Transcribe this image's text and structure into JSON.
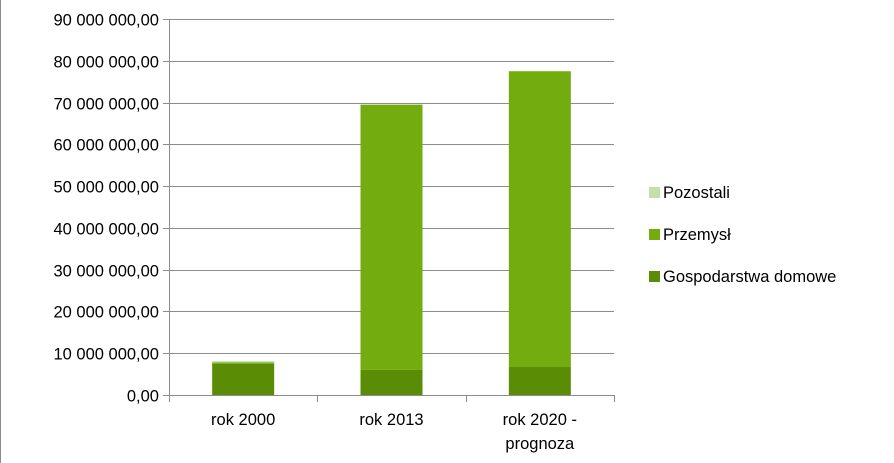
{
  "chart_data": {
    "type": "bar",
    "stacked": true,
    "categories": [
      "rok 2000",
      "rok 2013",
      "rok 2020 -\nprognoza"
    ],
    "series": [
      {
        "name": "Gospodarstwa domowe",
        "color": "#5b8c06",
        "values": [
          7500000,
          6000000,
          6700000
        ]
      },
      {
        "name": "Przemysł",
        "color": "#72ac0e",
        "values": [
          300000,
          63500000,
          70800000
        ]
      },
      {
        "name": "Pozostali",
        "color": "#c2e0a8",
        "values": [
          300000,
          0,
          0
        ]
      }
    ],
    "ylim": [
      0,
      90000000
    ],
    "yticks": [
      0,
      10000000,
      20000000,
      30000000,
      40000000,
      50000000,
      60000000,
      70000000,
      80000000,
      90000000
    ],
    "ytick_labels": [
      "0,00",
      "10 000 000,00",
      "20 000 000,00",
      "30 000 000,00",
      "40 000 000,00",
      "50 000 000,00",
      "60 000 000,00",
      "70 000 000,00",
      "80 000 000,00",
      "90 000 000,00"
    ],
    "grid": true,
    "legend": {
      "placement": "right",
      "entries": [
        "Pozostali",
        "Przemysł",
        "Gospodarstwa domowe"
      ]
    },
    "title": "",
    "xlabel": "",
    "ylabel": ""
  }
}
